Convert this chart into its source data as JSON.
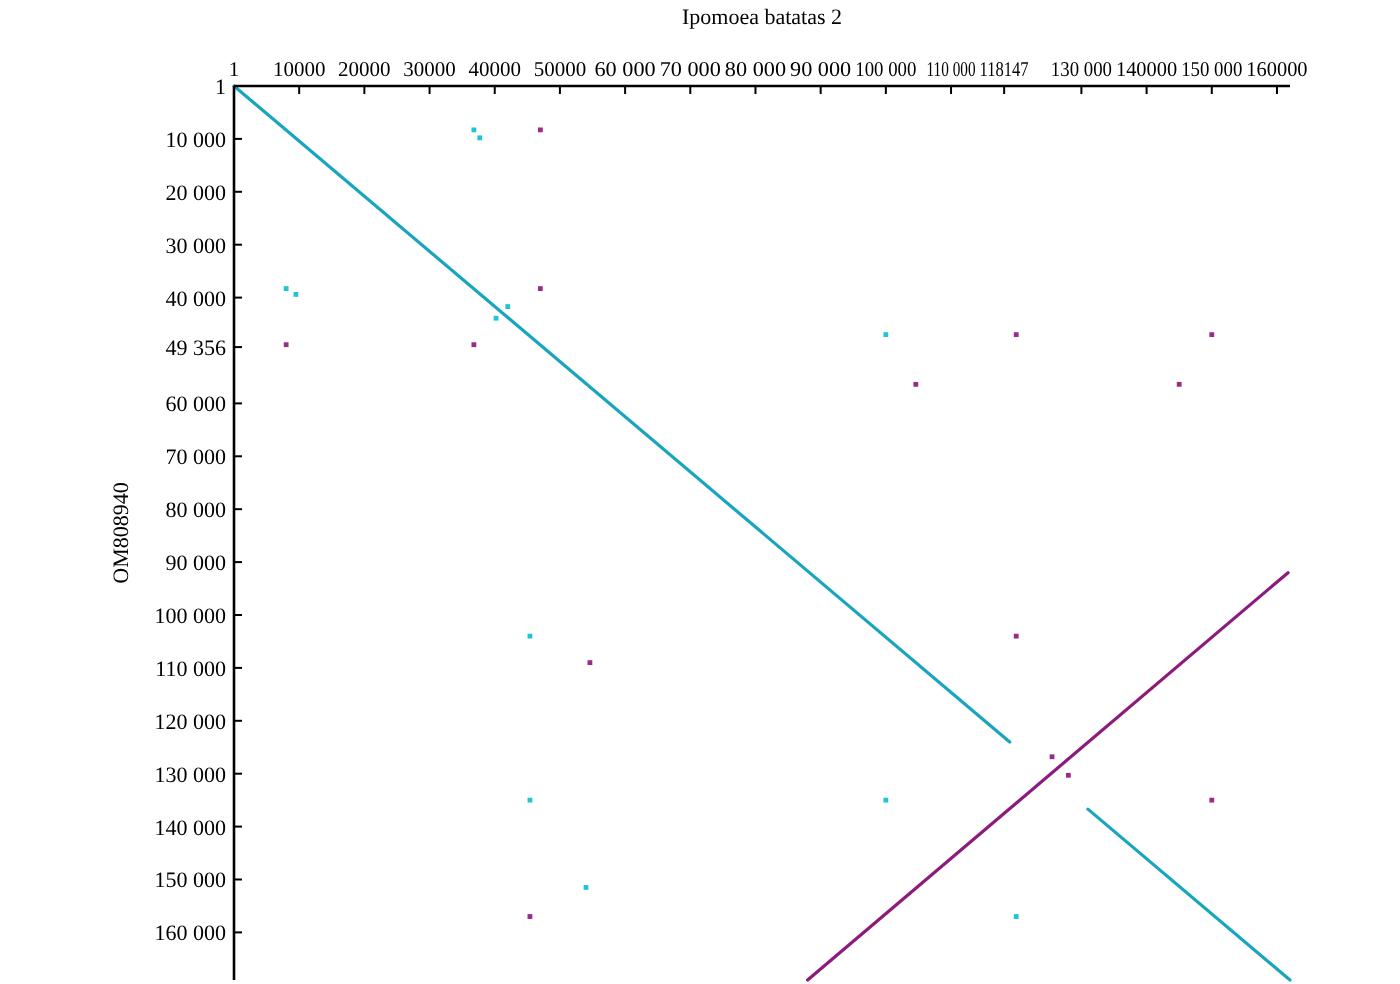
{
  "chart_data": {
    "type": "scatter",
    "xlabel": "Ipomoea batatas 2",
    "ylabel": "OM808940",
    "xlim": [
      1,
      162000
    ],
    "ylim": [
      169000,
      1
    ],
    "xticks": [
      1,
      10000,
      20000,
      30000,
      40000,
      50000,
      {
        "value": 60000,
        "label": "60 000"
      },
      {
        "value": 70000,
        "label": "70 000"
      },
      {
        "value": 80000,
        "label": "80 000"
      },
      {
        "value": 90000,
        "label": "90 000"
      },
      {
        "value": 100000,
        "label": "100 000"
      },
      {
        "value": 110000,
        "label": "110 000"
      },
      118147,
      {
        "value": 130000,
        "label": "130 000"
      },
      140000,
      {
        "value": 150000,
        "label": "150 000"
      },
      160000
    ],
    "yticks": [
      1,
      {
        "value": 10000,
        "label": "10 000"
      },
      {
        "value": 20000,
        "label": "20 000"
      },
      {
        "value": 30000,
        "label": "30 000"
      },
      {
        "value": 40000,
        "label": "40 000"
      },
      {
        "value": 49356,
        "label": "49 356"
      },
      {
        "value": 60000,
        "label": "60 000"
      },
      {
        "value": 70000,
        "label": "70 000"
      },
      {
        "value": 80000,
        "label": "80 000"
      },
      {
        "value": 90000,
        "label": "90 000"
      },
      {
        "value": 100000,
        "label": "100 000"
      },
      {
        "value": 110000,
        "label": "110 000"
      },
      {
        "value": 120000,
        "label": "120 000"
      },
      {
        "value": 130000,
        "label": "130 000"
      },
      {
        "value": 140000,
        "label": "140 000"
      },
      {
        "value": 150000,
        "label": "150 000"
      },
      {
        "value": 160000,
        "label": "160 000"
      }
    ],
    "grid": false,
    "marker": "square",
    "series": [
      {
        "type": "line",
        "marker": "none",
        "color": "#1aa5bf",
        "x": [
          1,
          119000
        ],
        "values": [
          1,
          124000
        ]
      },
      {
        "type": "line",
        "marker": "none",
        "color": "#8b1c7c",
        "x": [
          88000,
          161700
        ],
        "values": [
          169000,
          92000
        ]
      },
      {
        "type": "line",
        "marker": "none",
        "color": "#1aa5bf",
        "x": [
          131000,
          162000
        ],
        "values": [
          136700,
          169000
        ]
      },
      {
        "color": "#1fc4d6",
        "x": [
          36800,
          37700,
          8000,
          9500,
          42000,
          40200,
          100000,
          45400,
          45400,
          100000,
          120000,
          54000
        ],
        "values": [
          8300,
          9800,
          38300,
          39400,
          41700,
          43900,
          47000,
          104000,
          135000,
          135000,
          157000,
          151500
        ]
      },
      {
        "type": "scatter",
        "color": "#9b2a88",
        "x": [
          47000,
          47000,
          8000,
          36800,
          104600,
          120000,
          150000,
          145000,
          54600,
          120000,
          125500,
          128000,
          150000,
          45400
        ],
        "values": [
          8300,
          38300,
          48900,
          48900,
          56400,
          47000,
          47000,
          56400,
          109000,
          104000,
          126800,
          130300,
          135000,
          157000
        ]
      }
    ]
  }
}
